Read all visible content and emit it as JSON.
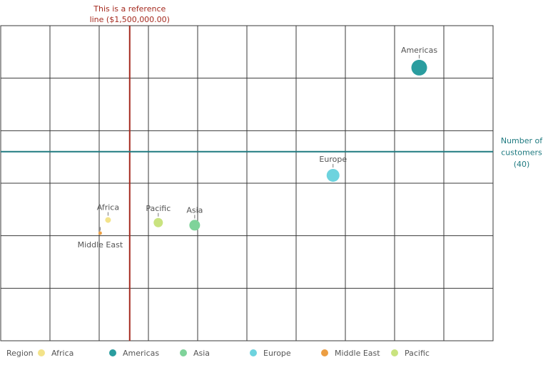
{
  "chart_data": {
    "type": "scatter",
    "x_range": [
      0,
      10
    ],
    "y_range": [
      0,
      6
    ],
    "grid": true,
    "points": [
      {
        "label": "Americas",
        "x": 8.5,
        "y": 5.2,
        "size": 11,
        "color": "#2a9d9f"
      },
      {
        "label": "Europe",
        "x": 6.75,
        "y": 3.15,
        "size": 9,
        "color": "#6dd3de"
      },
      {
        "label": "Asia",
        "x": 3.94,
        "y": 2.2,
        "size": 7.5,
        "color": "#7fd39a"
      },
      {
        "label": "Pacific",
        "x": 3.2,
        "y": 2.25,
        "size": 6.5,
        "color": "#c9e37f"
      },
      {
        "label": "Africa",
        "x": 2.18,
        "y": 2.3,
        "size": 4,
        "color": "#f3e38a"
      },
      {
        "label": "Middle East",
        "x": 2.02,
        "y": 2.05,
        "size": 2.5,
        "color": "#ec9e42"
      }
    ],
    "reference_lines": [
      {
        "axis": "x",
        "value": 2.62,
        "label_lines": [
          "This is a reference",
          "line ($1,500,000.00)"
        ],
        "color": "#a52a1f"
      },
      {
        "axis": "y",
        "value": 3.6,
        "label_lines": [
          "Number of",
          "customers",
          "(40)"
        ],
        "color": "#1f7a80"
      }
    ],
    "legend": {
      "title": "Region",
      "position": "bottom",
      "items": [
        {
          "label": "Africa",
          "color": "#f3e38a"
        },
        {
          "label": "Americas",
          "color": "#2a9d9f"
        },
        {
          "label": "Asia",
          "color": "#7fd39a"
        },
        {
          "label": "Europe",
          "color": "#6dd3de"
        },
        {
          "label": "Middle East",
          "color": "#ec9e42"
        },
        {
          "label": "Pacific",
          "color": "#c9e37f"
        }
      ]
    }
  }
}
